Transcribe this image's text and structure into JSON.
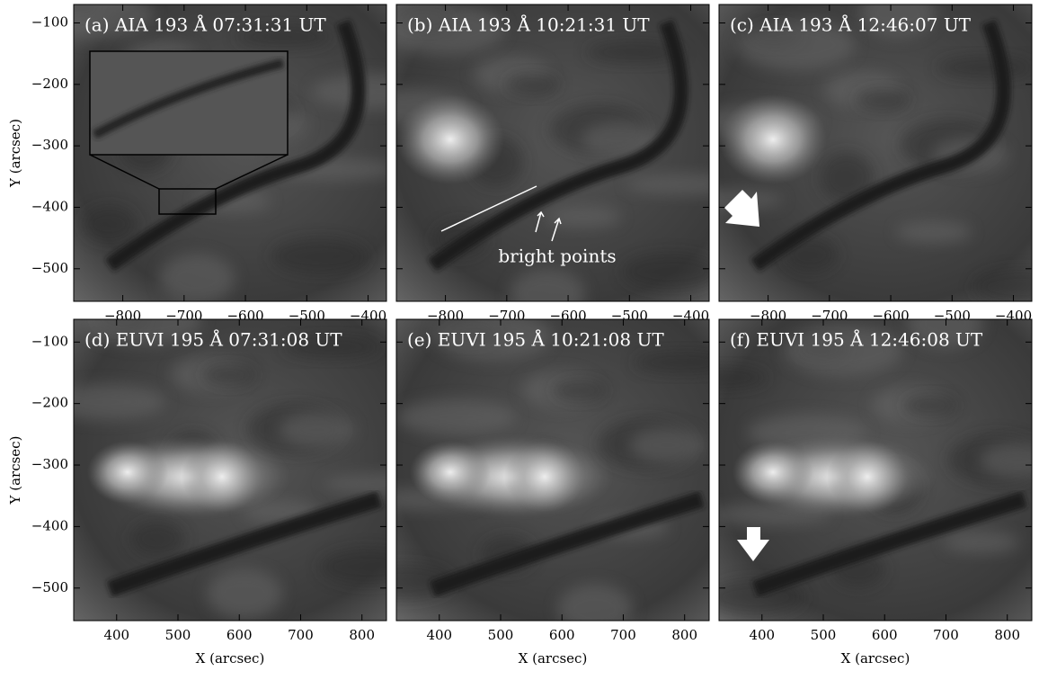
{
  "figure": {
    "rows": [
      {
        "xlim": [
          -880,
          -370
        ],
        "ylim": [
          -553,
          -70
        ],
        "xticks": [
          {
            "value": -800,
            "label": "−800"
          },
          {
            "value": -700,
            "label": "−700"
          },
          {
            "value": -600,
            "label": "−600"
          },
          {
            "value": -500,
            "label": "−500"
          },
          {
            "value": -400,
            "label": "−400"
          }
        ],
        "yticks": [
          {
            "value": -100,
            "label": "−100"
          },
          {
            "value": -200,
            "label": "−200"
          },
          {
            "value": -300,
            "label": "−300"
          },
          {
            "value": -400,
            "label": "−400"
          },
          {
            "value": -500,
            "label": "−500"
          }
        ],
        "ylabel": "Y (arcsec)",
        "panels": [
          {
            "label": "(a) AIA 193 Å  07:31:31 UT"
          },
          {
            "label": "(b) AIA 193 Å  10:21:31 UT"
          },
          {
            "label": "(c) AIA 193 Å  12:46:07 UT"
          }
        ]
      },
      {
        "xlim": [
          330,
          840
        ],
        "ylim": [
          -553,
          -63
        ],
        "xticks": [
          400,
          500,
          600,
          700,
          800
        ],
        "yticks": [
          {
            "value": -100,
            "label": "−100"
          },
          {
            "value": -200,
            "label": "−200"
          },
          {
            "value": -300,
            "label": "−300"
          },
          {
            "value": -400,
            "label": "−400"
          },
          {
            "value": -500,
            "label": "−500"
          }
        ],
        "ylabel": "Y (arcsec)",
        "xlabel": "X (arcsec)",
        "panels": [
          {
            "label": "(d) EUVI 195 Å  07:31:08 UT"
          },
          {
            "label": "(e) EUVI 195 Å  10:21:08 UT"
          },
          {
            "label": "(f) EUVI 195 Å  12:46:08 UT"
          }
        ]
      }
    ],
    "annotation": "bright points"
  }
}
